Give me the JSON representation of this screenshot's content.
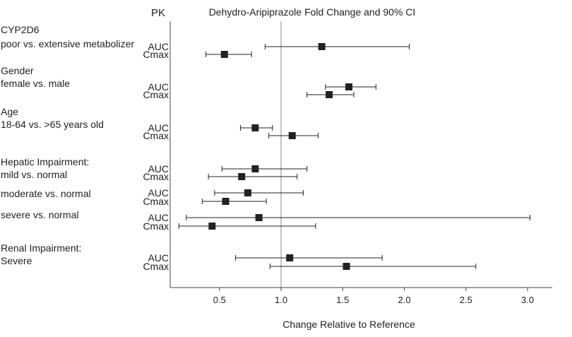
{
  "chart_data": {
    "type": "forest",
    "title": "Dehydro-Aripiprazole Fold Change and 90% CI",
    "pk_header": "PK",
    "xlabel": "Change Relative to Reference",
    "reference_line": 1.0,
    "xlim": [
      0.1,
      3.2
    ],
    "xticks": [
      0.5,
      1.0,
      1.5,
      2.0,
      2.5,
      3.0
    ],
    "xtick_labels": [
      "0.5",
      "1.0",
      "1.5",
      "2.0",
      "2.5",
      "3.0"
    ],
    "groups": [
      {
        "labels": [
          "CYP2D6",
          "poor vs. extensive metabolizer"
        ],
        "rows": [
          {
            "pk": "AUC",
            "est": 1.33,
            "low": 0.87,
            "high": 2.04
          },
          {
            "pk": "Cmax",
            "est": 0.54,
            "low": 0.39,
            "high": 0.76
          }
        ]
      },
      {
        "labels": [
          "Gender",
          "female vs. male"
        ],
        "rows": [
          {
            "pk": "AUC",
            "est": 1.55,
            "low": 1.36,
            "high": 1.77
          },
          {
            "pk": "Cmax",
            "est": 1.39,
            "low": 1.21,
            "high": 1.59
          }
        ]
      },
      {
        "labels": [
          "Age",
          "18-64 vs. >65 years old"
        ],
        "rows": [
          {
            "pk": "AUC",
            "est": 0.79,
            "low": 0.67,
            "high": 0.93
          },
          {
            "pk": "Cmax",
            "est": 1.09,
            "low": 0.9,
            "high": 1.3
          }
        ]
      },
      {
        "labels": [
          "Hepatic Impairment:",
          "mild vs. normal"
        ],
        "rows": [
          {
            "pk": "AUC",
            "est": 0.79,
            "low": 0.52,
            "high": 1.21
          },
          {
            "pk": "Cmax",
            "est": 0.68,
            "low": 0.41,
            "high": 1.13
          }
        ]
      },
      {
        "labels": [
          "moderate vs. normal"
        ],
        "rows": [
          {
            "pk": "AUC",
            "est": 0.73,
            "low": 0.46,
            "high": 1.18
          },
          {
            "pk": "Cmax",
            "est": 0.55,
            "low": 0.36,
            "high": 0.88
          }
        ]
      },
      {
        "labels": [
          "severe vs. normal"
        ],
        "rows": [
          {
            "pk": "AUC",
            "est": 0.82,
            "low": 0.23,
            "high": 3.02
          },
          {
            "pk": "Cmax",
            "est": 0.44,
            "low": 0.17,
            "high": 1.28
          }
        ]
      },
      {
        "labels": [
          "Renal Impairment:",
          "Severe"
        ],
        "rows": [
          {
            "pk": "AUC",
            "est": 1.07,
            "low": 0.63,
            "high": 1.82
          },
          {
            "pk": "Cmax",
            "est": 1.53,
            "low": 0.91,
            "high": 2.58
          }
        ]
      }
    ]
  }
}
